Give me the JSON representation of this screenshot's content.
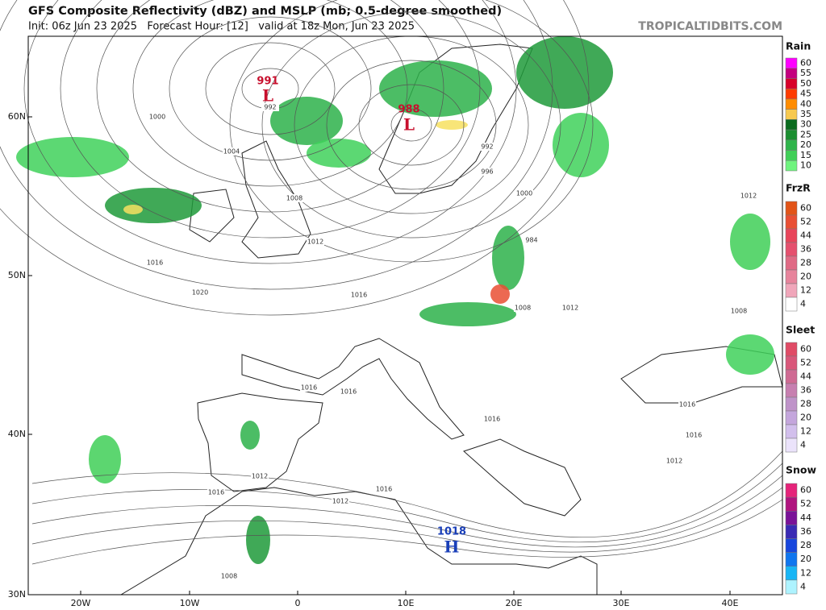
{
  "header": {
    "title": "GFS Composite Reflectivity (dBZ) and MSLP (mb; 0.5-degree smoothed)",
    "subtitle": "Init: 06z Jun 23 2025   Forecast Hour: [12]   valid at 18z Mon, Jun 23 2025",
    "site": "TROPICALTIDBITS.COM"
  },
  "map": {
    "lat_labels": [
      "60N",
      "50N",
      "40N",
      "30N"
    ],
    "lon_labels": [
      "20W",
      "10W",
      "0",
      "10E",
      "20E",
      "30E",
      "40E"
    ],
    "pressure_centers": [
      {
        "value": 991,
        "symbol": "L"
      },
      {
        "value": 988,
        "symbol": "L"
      },
      {
        "value": 1018,
        "symbol": "H"
      }
    ],
    "isobar_labels": [
      1000,
      992,
      1004,
      1008,
      1012,
      1016,
      1020,
      1016,
      1016,
      1016,
      1016,
      1012,
      1012,
      1016,
      1016,
      1008,
      996,
      992,
      1000,
      984,
      1008,
      1012,
      1012,
      1008,
      1016,
      1016,
      1012
    ]
  },
  "legend": [
    {
      "title": "Rain",
      "levels": [
        60,
        55,
        50,
        45,
        40,
        35,
        30,
        25,
        20,
        15,
        10
      ]
    },
    {
      "title": "FrzR",
      "levels": [
        60,
        52,
        44,
        36,
        28,
        20,
        12,
        4
      ]
    },
    {
      "title": "Sleet",
      "levels": [
        60,
        52,
        44,
        36,
        28,
        20,
        12,
        4
      ]
    },
    {
      "title": "Snow",
      "levels": [
        60,
        52,
        44,
        36,
        28,
        20,
        12,
        4
      ]
    }
  ]
}
